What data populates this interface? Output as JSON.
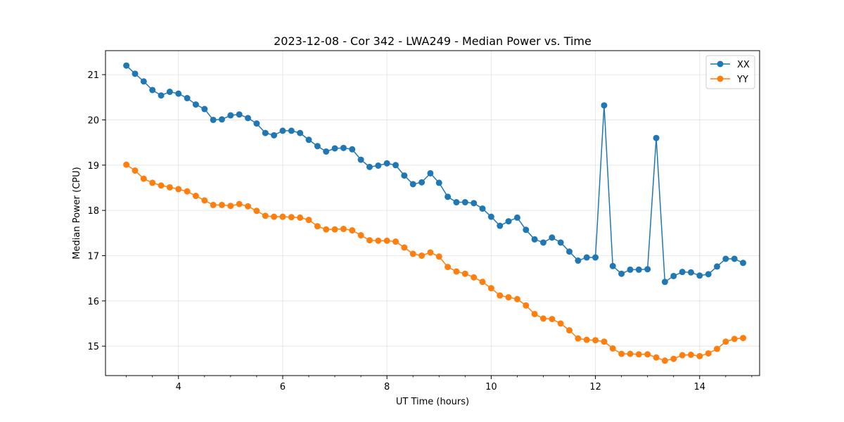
{
  "chart_data": {
    "type": "line",
    "title": "2023-12-08 - Cor 342 - LWA249 - Median Power vs. Time",
    "xlabel": "UT Time (hours)",
    "ylabel": "Median Power (CPU)",
    "xlim": [
      2.6,
      15.15
    ],
    "ylim": [
      14.35,
      21.53
    ],
    "xticks": [
      4,
      6,
      8,
      10,
      12,
      14
    ],
    "xtick_labels": [
      "4",
      "6",
      "8",
      "10",
      "12",
      "14"
    ],
    "yticks": [
      15,
      16,
      17,
      18,
      19,
      20,
      21
    ],
    "ytick_labels": [
      "15",
      "16",
      "17",
      "18",
      "19",
      "20",
      "21"
    ],
    "grid": true,
    "legend_position": "top-right",
    "x": [
      3.0,
      3.167,
      3.333,
      3.5,
      3.667,
      3.833,
      4.0,
      4.167,
      4.333,
      4.5,
      4.667,
      4.833,
      5.0,
      5.167,
      5.333,
      5.5,
      5.667,
      5.833,
      6.0,
      6.167,
      6.333,
      6.5,
      6.667,
      6.833,
      7.0,
      7.167,
      7.333,
      7.5,
      7.667,
      7.833,
      8.0,
      8.167,
      8.333,
      8.5,
      8.667,
      8.833,
      9.0,
      9.167,
      9.333,
      9.5,
      9.667,
      9.833,
      10.0,
      10.167,
      10.333,
      10.5,
      10.667,
      10.833,
      11.0,
      11.167,
      11.333,
      11.5,
      11.667,
      11.833,
      12.0,
      12.167,
      12.333,
      12.5,
      12.667,
      12.833,
      13.0,
      13.167,
      13.333,
      13.5,
      13.667,
      13.833,
      14.0,
      14.167,
      14.333,
      14.5,
      14.667,
      14.833
    ],
    "series": [
      {
        "name": "XX",
        "color": "#1f77b4",
        "values": [
          21.2,
          21.02,
          20.85,
          20.66,
          20.54,
          20.62,
          20.58,
          20.48,
          20.34,
          20.24,
          20.0,
          20.01,
          20.1,
          20.12,
          20.04,
          19.92,
          19.71,
          19.66,
          19.76,
          19.76,
          19.71,
          19.56,
          19.42,
          19.3,
          19.37,
          19.38,
          19.35,
          19.12,
          18.96,
          18.99,
          19.04,
          19.0,
          18.77,
          18.58,
          18.62,
          18.82,
          18.61,
          18.3,
          18.18,
          18.18,
          18.16,
          18.04,
          17.86,
          17.66,
          17.76,
          17.84,
          17.57,
          17.36,
          17.29,
          17.4,
          17.29,
          17.09,
          16.89,
          16.96,
          16.96,
          20.32,
          16.77,
          16.6,
          16.69,
          16.69,
          16.7,
          19.6,
          16.42,
          16.55,
          16.64,
          16.63,
          16.56,
          16.59,
          16.76,
          16.93,
          16.93,
          16.84
        ]
      },
      {
        "name": "YY",
        "color": "#ff7f0e",
        "values": [
          19.01,
          18.88,
          18.7,
          18.61,
          18.55,
          18.51,
          18.47,
          18.42,
          18.32,
          18.22,
          18.12,
          18.12,
          18.1,
          18.14,
          18.09,
          17.99,
          17.88,
          17.86,
          17.86,
          17.85,
          17.84,
          17.79,
          17.65,
          17.58,
          17.58,
          17.59,
          17.56,
          17.45,
          17.34,
          17.33,
          17.33,
          17.31,
          17.18,
          17.04,
          17.0,
          17.07,
          16.98,
          16.75,
          16.65,
          16.6,
          16.52,
          16.42,
          16.28,
          16.12,
          16.08,
          16.04,
          15.9,
          15.71,
          15.61,
          15.6,
          15.5,
          15.35,
          15.17,
          15.14,
          15.13,
          15.1,
          14.95,
          14.83,
          14.83,
          14.82,
          14.82,
          14.75,
          14.68,
          14.72,
          14.8,
          14.81,
          14.78,
          14.84,
          14.94,
          15.1,
          15.16,
          15.18
        ]
      }
    ]
  }
}
